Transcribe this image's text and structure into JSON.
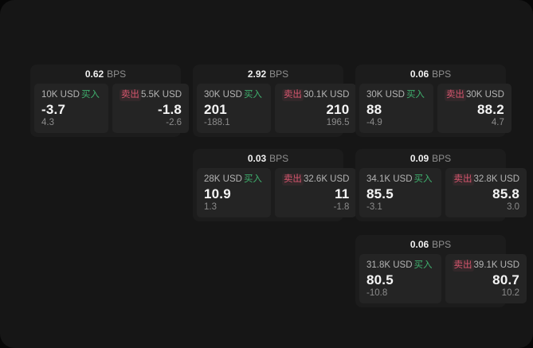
{
  "labels": {
    "buy": "买入",
    "sell": "卖出",
    "bps_unit": "BPS"
  },
  "colors": {
    "page_bg": "#070707",
    "panel_bg": "#161616",
    "card_bg": "#1c1c1c",
    "tile_bg": "#242424",
    "buy_green": "#3fb06e",
    "sell_red": "#d6566e"
  },
  "cards": [
    {
      "bps": "0.62",
      "buy": {
        "amount": "10K USD",
        "price": "-3.7",
        "delta": "4.3"
      },
      "sell": {
        "amount": "5.5K USD",
        "price": "-1.8",
        "delta": "-2.6"
      }
    },
    {
      "bps": "2.92",
      "buy": {
        "amount": "30K USD",
        "price": "201",
        "delta": "-188.1"
      },
      "sell": {
        "amount": "30.1K USD",
        "price": "210",
        "delta": "196.5"
      }
    },
    {
      "bps": "0.06",
      "buy": {
        "amount": "30K USD",
        "price": "88",
        "delta": "-4.9"
      },
      "sell": {
        "amount": "30K USD",
        "price": "88.2",
        "delta": "4.7"
      }
    },
    {
      "bps": "0.03",
      "buy": {
        "amount": "28K USD",
        "price": "10.9",
        "delta": "1.3"
      },
      "sell": {
        "amount": "32.6K USD",
        "price": "11",
        "delta": "-1.8"
      }
    },
    {
      "bps": "0.09",
      "buy": {
        "amount": "34.1K USD",
        "price": "85.5",
        "delta": "-3.1"
      },
      "sell": {
        "amount": "32.8K USD",
        "price": "85.8",
        "delta": "3.0"
      }
    },
    {
      "bps": "0.06",
      "buy": {
        "amount": "31.8K USD",
        "price": "80.5",
        "delta": "-10.8"
      },
      "sell": {
        "amount": "39.1K USD",
        "price": "80.7",
        "delta": "10.2"
      }
    }
  ]
}
